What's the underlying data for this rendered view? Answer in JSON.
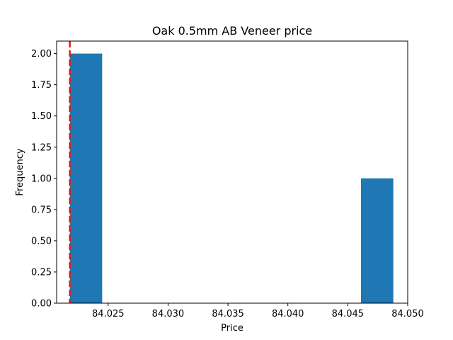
{
  "chart_data": {
    "type": "bar",
    "title": "Oak 0.5mm AB Veneer price",
    "xlabel": "Price",
    "ylabel": "Frequency",
    "xlim": [
      84.0207,
      84.05
    ],
    "ylim": [
      0,
      2.1
    ],
    "bins": [
      {
        "x0": 84.0218,
        "x1": 84.0245,
        "count": 2
      },
      {
        "x0": 84.0245,
        "x1": 84.0272,
        "count": 0
      },
      {
        "x0": 84.0272,
        "x1": 84.0299,
        "count": 0
      },
      {
        "x0": 84.0299,
        "x1": 84.0326,
        "count": 0
      },
      {
        "x0": 84.0326,
        "x1": 84.0353,
        "count": 0
      },
      {
        "x0": 84.0353,
        "x1": 84.038,
        "count": 0
      },
      {
        "x0": 84.038,
        "x1": 84.0407,
        "count": 0
      },
      {
        "x0": 84.0407,
        "x1": 84.0434,
        "count": 0
      },
      {
        "x0": 84.0434,
        "x1": 84.0461,
        "count": 0
      },
      {
        "x0": 84.0461,
        "x1": 84.0488,
        "count": 1
      }
    ],
    "reference_line": {
      "x": 84.0218,
      "style": "dashed",
      "color": "#e41a1c"
    },
    "xticks": [
      "84.025",
      "84.030",
      "84.035",
      "84.040",
      "84.045",
      "84.050"
    ],
    "xtick_values": [
      84.025,
      84.03,
      84.035,
      84.04,
      84.045,
      84.05
    ],
    "yticks": [
      "0.00",
      "0.25",
      "0.50",
      "0.75",
      "1.00",
      "1.25",
      "1.50",
      "1.75",
      "2.00"
    ],
    "ytick_values": [
      0,
      0.25,
      0.5,
      0.75,
      1.0,
      1.25,
      1.5,
      1.75,
      2.0
    ],
    "bar_color": "#1f77b4",
    "grid": false
  }
}
